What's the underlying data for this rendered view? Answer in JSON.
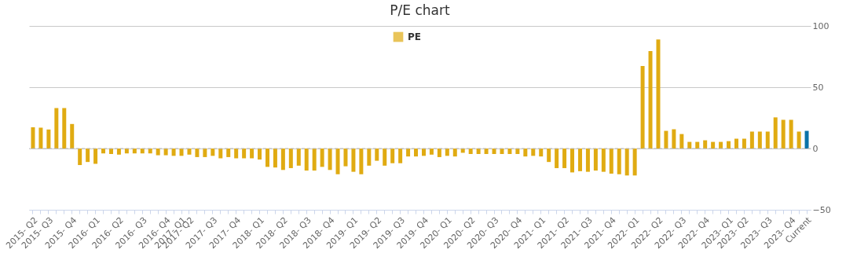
{
  "chart_data": {
    "type": "bar",
    "title": "P/E chart",
    "categories": [
      "2015- Q2",
      null,
      "2015- Q3",
      null,
      null,
      "2015- Q4",
      null,
      null,
      "2016- Q1",
      null,
      null,
      "2016- Q2",
      null,
      null,
      "2016- Q3",
      null,
      null,
      "2016- Q4",
      null,
      "2017- Q1",
      "2017- Q2",
      null,
      null,
      "2017- Q3",
      null,
      null,
      "2017- Q4",
      null,
      null,
      "2018- Q1",
      null,
      null,
      "2018- Q2",
      null,
      null,
      "2018- Q3",
      null,
      null,
      "2018- Q4",
      null,
      null,
      "2019- Q1",
      null,
      null,
      "2019- Q2",
      null,
      null,
      "2019- Q3",
      null,
      null,
      "2019- Q4",
      null,
      null,
      "2020- Q1",
      null,
      null,
      "2020- Q2",
      null,
      null,
      "2020- Q3",
      null,
      null,
      "2020- Q4",
      null,
      null,
      "2021- Q1",
      null,
      null,
      "2021- Q2",
      null,
      null,
      "2021- Q3",
      null,
      null,
      "2021- Q4",
      null,
      null,
      "2022- Q1",
      null,
      null,
      "2022- Q2",
      null,
      null,
      "2022- Q3",
      null,
      null,
      "2022- Q4",
      null,
      null,
      "2023- Q1",
      null,
      "2023- Q2",
      null,
      null,
      "2023- Q3",
      null,
      null,
      "2023- Q4",
      null,
      "Current"
    ],
    "series": [
      {
        "name": "PE",
        "color": "#e0ab12",
        "values": [
          17.3,
          17,
          15.5,
          33,
          33,
          20,
          -13.5,
          -11,
          -12.5,
          -4,
          -4.5,
          -5,
          -4,
          -4,
          -4,
          -4,
          -5.5,
          -5.5,
          -6,
          -6,
          -5,
          -7,
          -7,
          -6,
          -8,
          -7,
          -8,
          -8,
          -8,
          -9,
          -15,
          -15.5,
          -17.5,
          -16,
          -14,
          -18,
          -18,
          -15,
          -17.5,
          -21,
          -14.5,
          -19,
          -21,
          -14,
          -10,
          -14,
          -12,
          -12,
          -6.5,
          -6.5,
          -6,
          -5,
          -7,
          -6,
          -6.5,
          -3.5,
          -4.5,
          -4.5,
          -4.5,
          -4.5,
          -4.5,
          -4.5,
          -4.5,
          -6.5,
          -6,
          -6.5,
          -11,
          -16,
          -16,
          -19.5,
          -18.5,
          -19,
          -18,
          -19,
          -20.5,
          -21,
          -22,
          -22,
          67.3,
          79.5,
          89,
          14.4,
          15.7,
          11.8,
          5.4,
          5.4,
          6.7,
          5.4,
          5.4,
          6,
          8,
          8,
          13.8,
          13.8,
          13.8,
          25.4,
          23.4,
          23.4,
          13.8,
          14.4
        ],
        "colors": [
          "#e0ab12",
          "#e0ab12",
          "#e0ab12",
          "#e0ab12",
          "#e0ab12",
          "#e0ab12",
          "#e0ab12",
          "#e0ab12",
          "#e0ab12",
          "#e0ab12",
          "#e0ab12",
          "#e0ab12",
          "#e0ab12",
          "#e0ab12",
          "#e0ab12",
          "#e0ab12",
          "#e0ab12",
          "#e0ab12",
          "#e0ab12",
          "#e0ab12",
          "#e0ab12",
          "#e0ab12",
          "#e0ab12",
          "#e0ab12",
          "#e0ab12",
          "#e0ab12",
          "#e0ab12",
          "#e0ab12",
          "#e0ab12",
          "#e0ab12",
          "#e0ab12",
          "#e0ab12",
          "#e0ab12",
          "#e0ab12",
          "#e0ab12",
          "#e0ab12",
          "#e0ab12",
          "#e0ab12",
          "#e0ab12",
          "#e0ab12",
          "#e0ab12",
          "#e0ab12",
          "#e0ab12",
          "#e0ab12",
          "#e0ab12",
          "#e0ab12",
          "#e0ab12",
          "#e0ab12",
          "#e0ab12",
          "#e0ab12",
          "#e0ab12",
          "#e0ab12",
          "#e0ab12",
          "#e0ab12",
          "#e0ab12",
          "#e0ab12",
          "#e0ab12",
          "#e0ab12",
          "#e0ab12",
          "#e0ab12",
          "#e0ab12",
          "#e0ab12",
          "#e0ab12",
          "#e0ab12",
          "#e0ab12",
          "#e0ab12",
          "#e0ab12",
          "#e0ab12",
          "#e0ab12",
          "#e0ab12",
          "#e0ab12",
          "#e0ab12",
          "#e0ab12",
          "#e0ab12",
          "#e0ab12",
          "#e0ab12",
          "#e0ab12",
          "#e0ab12",
          "#e0ab12",
          "#e0ab12",
          "#e0ab12",
          "#e0ab12",
          "#e0ab12",
          "#e0ab12",
          "#e0ab12",
          "#e0ab12",
          "#e0ab12",
          "#e0ab12",
          "#e0ab12",
          "#e0ab12",
          "#e0ab12",
          "#e0ab12",
          "#e0ab12",
          "#e0ab12",
          "#e0ab12",
          "#e0ab12",
          "#e0ab12",
          "#e0ab12",
          "#e0ab12",
          "#0b72a8"
        ]
      }
    ],
    "ylim": [
      -50,
      100
    ],
    "yticks": [
      -50,
      0,
      50,
      100
    ],
    "grid": "y",
    "legend": "top",
    "ref_lines": [
      {
        "axis": "y",
        "value": 0,
        "line_style": "dashed",
        "color": "#bbbbbb"
      }
    ]
  }
}
